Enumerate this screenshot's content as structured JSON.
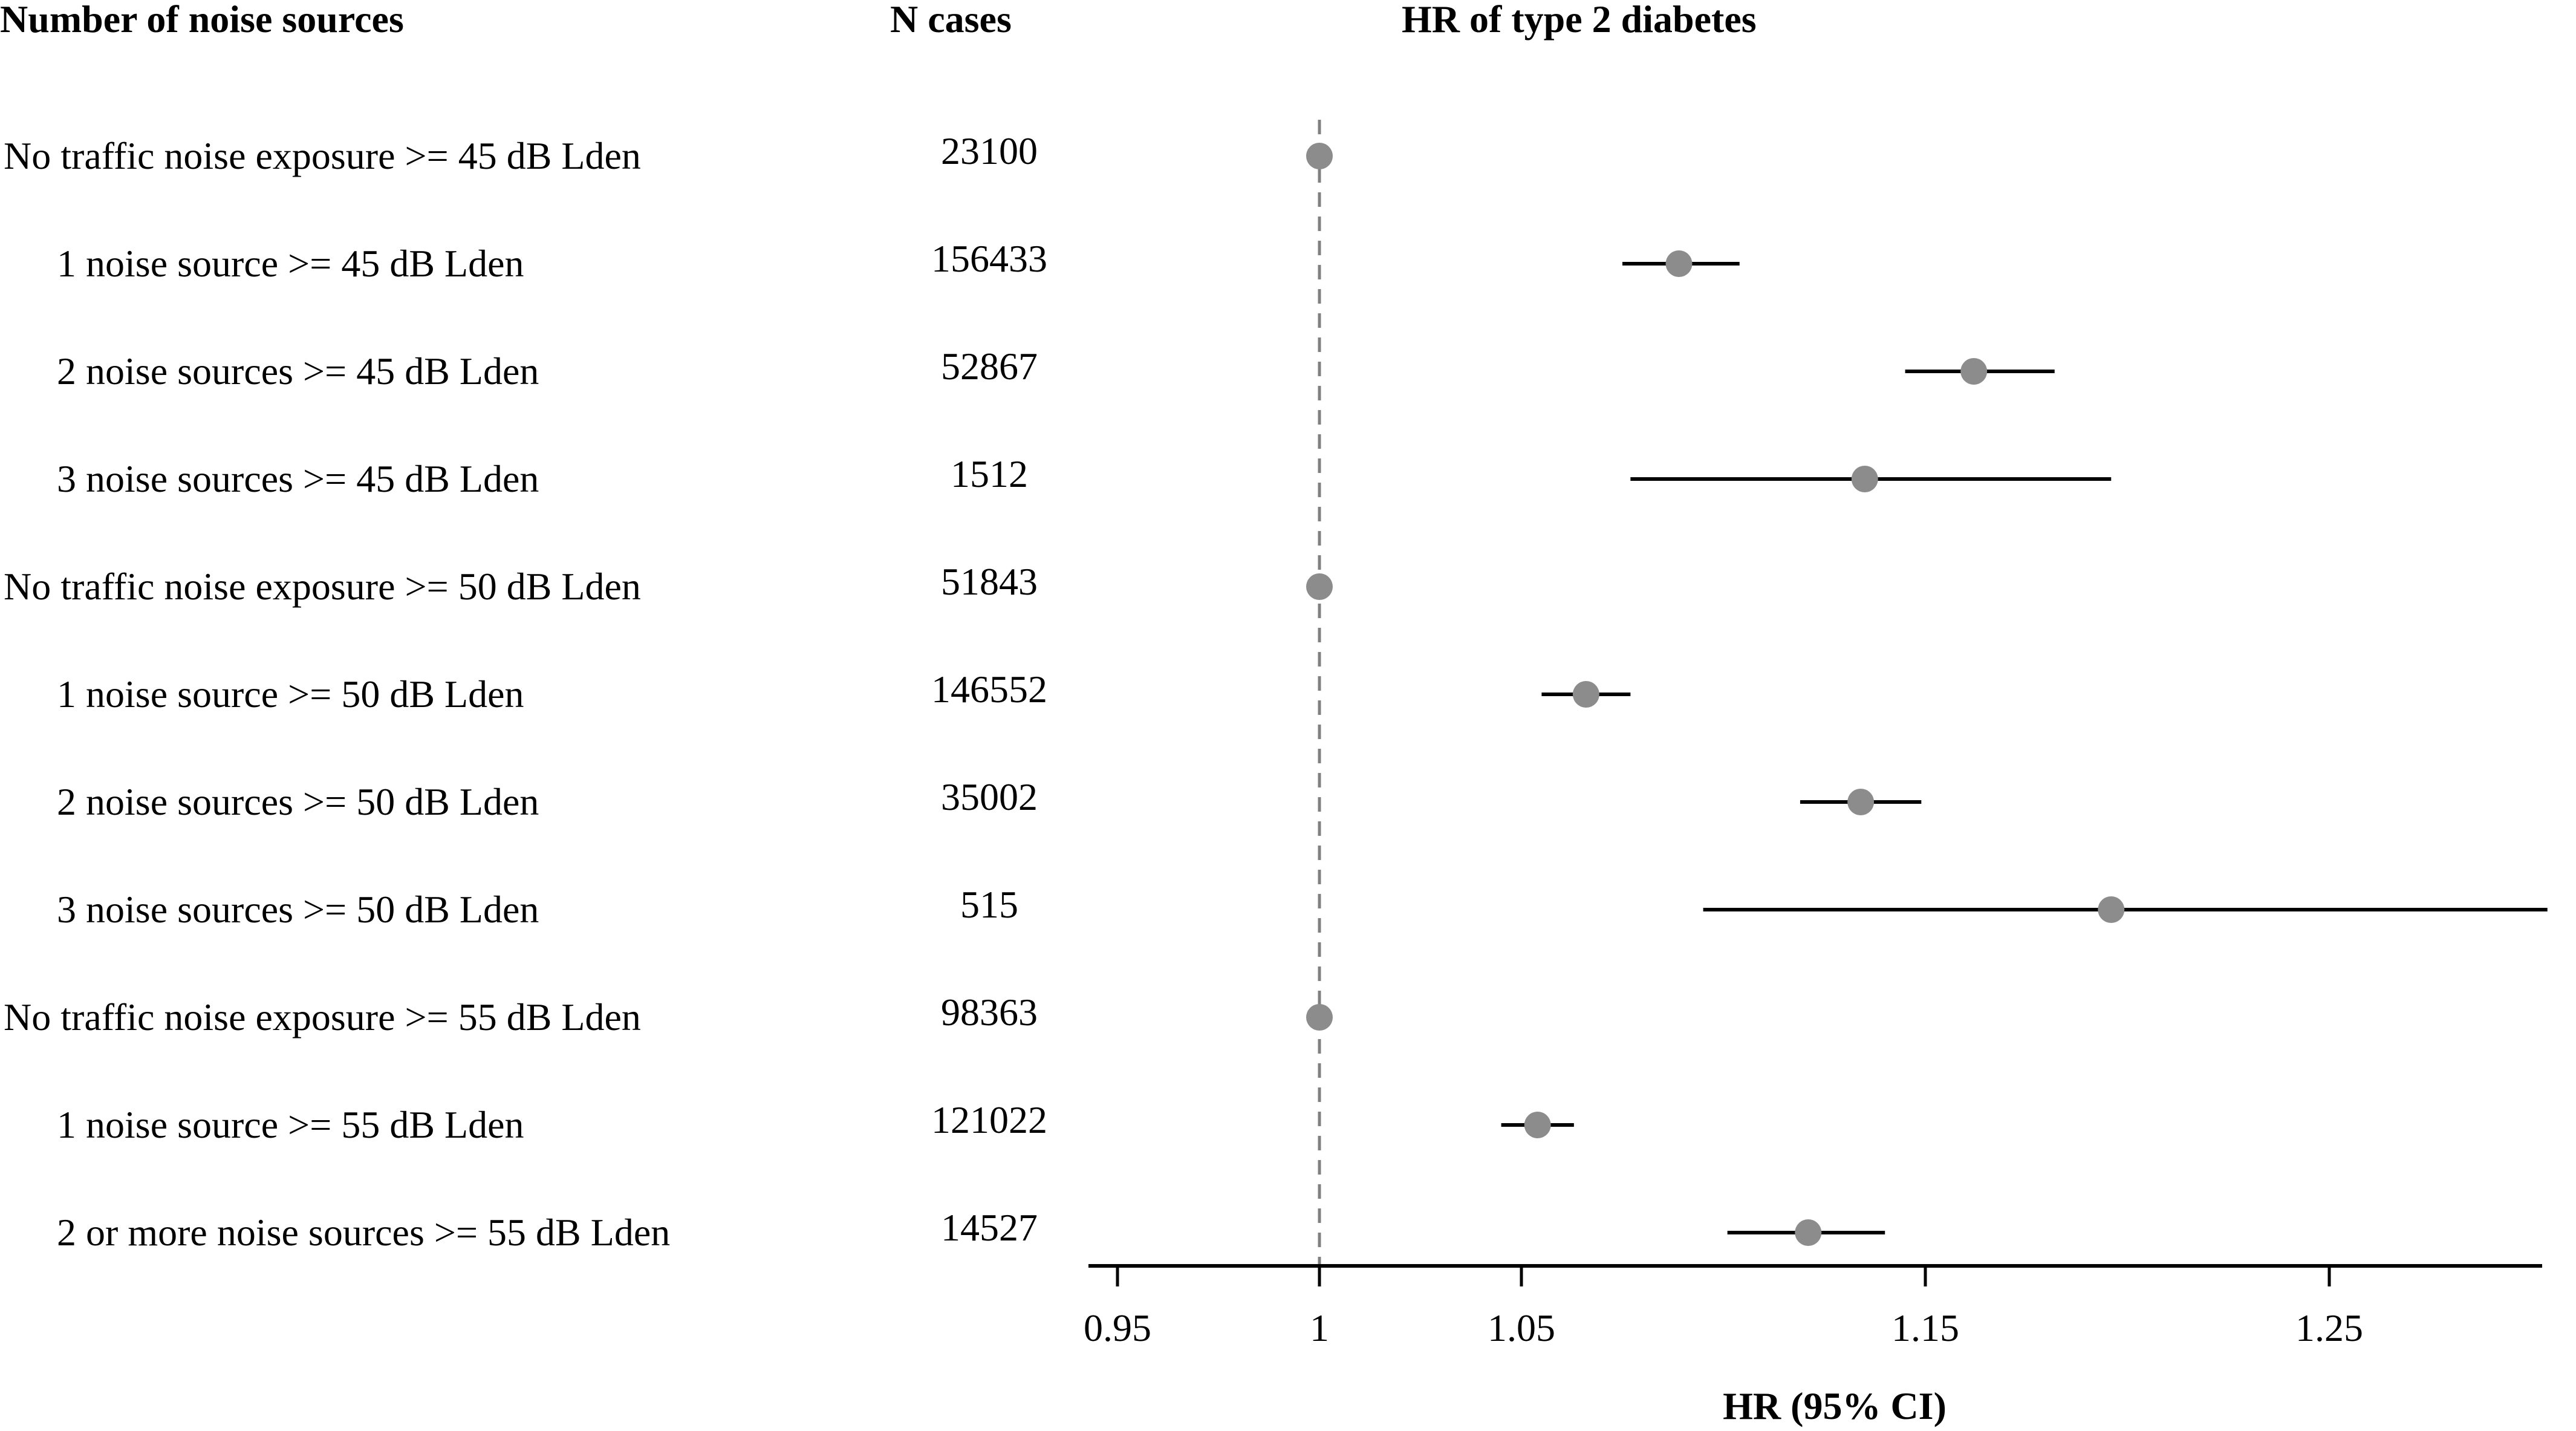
{
  "headers": {
    "source": "Number of noise sources",
    "n_cases": "N cases",
    "hr": "HR of type 2 diabetes"
  },
  "chart_data": {
    "type": "forest",
    "title": "HR of type 2 diabetes",
    "xlabel": "HR (95% CI)",
    "xlim": [
      0.92,
      1.3
    ],
    "xticks": [
      0.95,
      1,
      1.05,
      1.15,
      1.25
    ],
    "xtick_labels": [
      "0.95",
      "1",
      "1.05",
      "1.15",
      "1.25"
    ],
    "reference_line": 1,
    "point_color": "#8c8c8c",
    "ci_color": "#000000",
    "rows": [
      {
        "label": "No traffic noise exposure >= 45 dB Lden",
        "indent": false,
        "n": "23100",
        "hr": 1.0,
        "lo": null,
        "hi": null
      },
      {
        "label": "1 noise source >= 45 dB Lden",
        "indent": true,
        "n": "156433",
        "hr": 1.089,
        "lo": 1.075,
        "hi": 1.104
      },
      {
        "label": "2 noise sources >= 45 dB Lden",
        "indent": true,
        "n": "52867",
        "hr": 1.162,
        "lo": 1.145,
        "hi": 1.182
      },
      {
        "label": "3 noise sources >= 45 dB Lden",
        "indent": true,
        "n": "1512",
        "hr": 1.135,
        "lo": 1.077,
        "hi": 1.196
      },
      {
        "label": "No traffic noise exposure >= 50 dB Lden",
        "indent": false,
        "n": "51843",
        "hr": 1.0,
        "lo": null,
        "hi": null
      },
      {
        "label": "1 noise source >= 50 dB Lden",
        "indent": true,
        "n": "146552",
        "hr": 1.066,
        "lo": 1.055,
        "hi": 1.077
      },
      {
        "label": "2 noise sources >= 50 dB Lden",
        "indent": true,
        "n": "35002",
        "hr": 1.134,
        "lo": 1.119,
        "hi": 1.149
      },
      {
        "label": "3 noise sources >= 50 dB Lden",
        "indent": true,
        "n": "515",
        "hr": 1.196,
        "lo": 1.095,
        "hi": 1.304
      },
      {
        "label": "No traffic noise exposure >= 55 dB Lden",
        "indent": false,
        "n": "98363",
        "hr": 1.0,
        "lo": null,
        "hi": null
      },
      {
        "label": "1 noise source >= 55 dB Lden",
        "indent": true,
        "n": "121022",
        "hr": 1.054,
        "lo": 1.045,
        "hi": 1.063
      },
      {
        "label": "2 or more noise sources >= 55 dB Lden",
        "indent": true,
        "n": "14527",
        "hr": 1.121,
        "lo": 1.101,
        "hi": 1.14
      }
    ]
  }
}
